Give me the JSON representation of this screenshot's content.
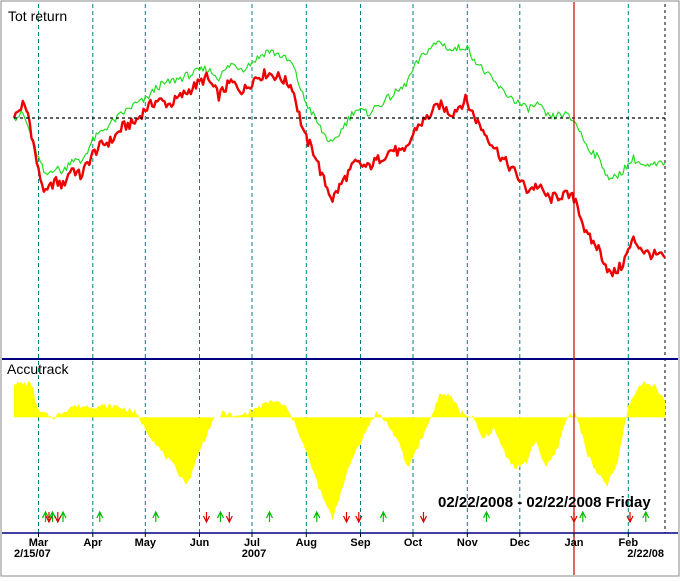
{
  "colors": {
    "series_a": "#ee0000",
    "series_b": "#22dd22",
    "accutrack_fill": "#ffff00",
    "grid_dashed": "#008080",
    "reference_line": "#000000",
    "panel_divider": "#000080",
    "cursor_line": "#cc0000",
    "signal_up": "#00bb00",
    "signal_down": "#dd0000"
  },
  "chart_data": [
    {
      "type": "line",
      "title": "Tot return",
      "x_range": [
        "2007-02-15",
        "2008-02-22"
      ],
      "reference_line_y": 0,
      "ylim": [
        -0.26,
        0.12
      ],
      "grid": "vertical dashed month lines",
      "series": [
        {
          "color": "#ee0000",
          "points": [
            [
              "2007-02-15",
              0.0
            ],
            [
              "2007-02-20",
              0.015
            ],
            [
              "2007-02-23",
              0.005
            ],
            [
              "2007-03-01",
              -0.06
            ],
            [
              "2007-03-05",
              -0.085
            ],
            [
              "2007-03-10",
              -0.07
            ],
            [
              "2007-03-15",
              -0.075
            ],
            [
              "2007-03-20",
              -0.055
            ],
            [
              "2007-03-25",
              -0.065
            ],
            [
              "2007-04-01",
              -0.04
            ],
            [
              "2007-04-06",
              -0.03
            ],
            [
              "2007-04-12",
              -0.025
            ],
            [
              "2007-04-18",
              -0.01
            ],
            [
              "2007-04-25",
              -0.005
            ],
            [
              "2007-05-01",
              0.01
            ],
            [
              "2007-05-08",
              0.02
            ],
            [
              "2007-05-15",
              0.015
            ],
            [
              "2007-05-22",
              0.025
            ],
            [
              "2007-05-29",
              0.035
            ],
            [
              "2007-06-05",
              0.045
            ],
            [
              "2007-06-12",
              0.025
            ],
            [
              "2007-06-19",
              0.04
            ],
            [
              "2007-06-26",
              0.03
            ],
            [
              "2007-07-03",
              0.045
            ],
            [
              "2007-07-10",
              0.05
            ],
            [
              "2007-07-17",
              0.045
            ],
            [
              "2007-07-24",
              0.035
            ],
            [
              "2007-07-31",
              -0.02
            ],
            [
              "2007-08-06",
              -0.04
            ],
            [
              "2007-08-10",
              -0.065
            ],
            [
              "2007-08-16",
              -0.09
            ],
            [
              "2007-08-22",
              -0.07
            ],
            [
              "2007-08-29",
              -0.05
            ],
            [
              "2007-09-05",
              -0.055
            ],
            [
              "2007-09-12",
              -0.045
            ],
            [
              "2007-09-19",
              -0.035
            ],
            [
              "2007-09-26",
              -0.04
            ],
            [
              "2007-10-03",
              -0.01
            ],
            [
              "2007-10-09",
              0.0
            ],
            [
              "2007-10-16",
              0.015
            ],
            [
              "2007-10-23",
              0.005
            ],
            [
              "2007-10-31",
              0.02
            ],
            [
              "2007-11-07",
              -0.005
            ],
            [
              "2007-11-14",
              -0.025
            ],
            [
              "2007-11-21",
              -0.045
            ],
            [
              "2007-11-28",
              -0.06
            ],
            [
              "2007-12-05",
              -0.08
            ],
            [
              "2007-12-11",
              -0.075
            ],
            [
              "2007-12-18",
              -0.09
            ],
            [
              "2007-12-26",
              -0.085
            ],
            [
              "2008-01-02",
              -0.09
            ],
            [
              "2008-01-08",
              -0.13
            ],
            [
              "2008-01-15",
              -0.145
            ],
            [
              "2008-01-22",
              -0.175
            ],
            [
              "2008-01-28",
              -0.165
            ],
            [
              "2008-02-04",
              -0.135
            ],
            [
              "2008-02-11",
              -0.15
            ],
            [
              "2008-02-22",
              -0.155
            ]
          ]
        },
        {
          "color": "#22dd22",
          "points": [
            [
              "2007-02-15",
              0.0
            ],
            [
              "2007-02-20",
              0.005
            ],
            [
              "2007-02-23",
              -0.01
            ],
            [
              "2007-03-01",
              -0.045
            ],
            [
              "2007-03-05",
              -0.065
            ],
            [
              "2007-03-10",
              -0.055
            ],
            [
              "2007-03-15",
              -0.06
            ],
            [
              "2007-03-20",
              -0.045
            ],
            [
              "2007-03-25",
              -0.05
            ],
            [
              "2007-04-01",
              -0.025
            ],
            [
              "2007-04-06",
              -0.015
            ],
            [
              "2007-04-12",
              -0.005
            ],
            [
              "2007-04-18",
              0.005
            ],
            [
              "2007-04-25",
              0.015
            ],
            [
              "2007-05-01",
              0.02
            ],
            [
              "2007-05-08",
              0.035
            ],
            [
              "2007-05-15",
              0.04
            ],
            [
              "2007-05-22",
              0.045
            ],
            [
              "2007-05-29",
              0.05
            ],
            [
              "2007-06-05",
              0.055
            ],
            [
              "2007-06-12",
              0.045
            ],
            [
              "2007-06-19",
              0.06
            ],
            [
              "2007-06-26",
              0.055
            ],
            [
              "2007-07-03",
              0.065
            ],
            [
              "2007-07-10",
              0.075
            ],
            [
              "2007-07-17",
              0.07
            ],
            [
              "2007-07-24",
              0.06
            ],
            [
              "2007-07-31",
              0.02
            ],
            [
              "2007-08-06",
              0.0
            ],
            [
              "2007-08-10",
              -0.015
            ],
            [
              "2007-08-16",
              -0.03
            ],
            [
              "2007-08-22",
              -0.01
            ],
            [
              "2007-08-29",
              0.01
            ],
            [
              "2007-09-05",
              0.005
            ],
            [
              "2007-09-12",
              0.015
            ],
            [
              "2007-09-19",
              0.025
            ],
            [
              "2007-09-26",
              0.035
            ],
            [
              "2007-10-03",
              0.06
            ],
            [
              "2007-10-09",
              0.075
            ],
            [
              "2007-10-16",
              0.085
            ],
            [
              "2007-10-23",
              0.075
            ],
            [
              "2007-10-31",
              0.08
            ],
            [
              "2007-11-07",
              0.06
            ],
            [
              "2007-11-14",
              0.045
            ],
            [
              "2007-11-21",
              0.03
            ],
            [
              "2007-11-28",
              0.02
            ],
            [
              "2007-12-05",
              0.01
            ],
            [
              "2007-12-11",
              0.015
            ],
            [
              "2007-12-18",
              0.0
            ],
            [
              "2007-12-26",
              0.005
            ],
            [
              "2008-01-02",
              -0.005
            ],
            [
              "2008-01-08",
              -0.03
            ],
            [
              "2008-01-15",
              -0.045
            ],
            [
              "2008-01-22",
              -0.07
            ],
            [
              "2008-01-28",
              -0.06
            ],
            [
              "2008-02-04",
              -0.045
            ],
            [
              "2008-02-11",
              -0.055
            ],
            [
              "2008-02-22",
              -0.05
            ]
          ]
        }
      ]
    },
    {
      "type": "area",
      "title": "Accutrack",
      "x_range": [
        "2007-02-15",
        "2008-02-22"
      ],
      "ylim": [
        -1.0,
        0.35
      ],
      "baseline": 0,
      "points": [
        [
          "2007-02-15",
          0.3
        ],
        [
          "2007-02-25",
          0.3
        ],
        [
          "2007-03-01",
          0.05
        ],
        [
          "2007-03-10",
          0.0
        ],
        [
          "2007-03-20",
          0.1
        ],
        [
          "2007-04-01",
          0.1
        ],
        [
          "2007-04-15",
          0.1
        ],
        [
          "2007-04-25",
          0.05
        ],
        [
          "2007-05-01",
          -0.1
        ],
        [
          "2007-05-10",
          -0.3
        ],
        [
          "2007-05-18",
          -0.45
        ],
        [
          "2007-05-25",
          -0.6
        ],
        [
          "2007-06-01",
          -0.3
        ],
        [
          "2007-06-08",
          -0.05
        ],
        [
          "2007-06-15",
          0.05
        ],
        [
          "2007-06-22",
          0.0
        ],
        [
          "2007-06-29",
          0.05
        ],
        [
          "2007-07-06",
          0.1
        ],
        [
          "2007-07-13",
          0.15
        ],
        [
          "2007-07-20",
          0.1
        ],
        [
          "2007-07-27",
          -0.1
        ],
        [
          "2007-08-03",
          -0.4
        ],
        [
          "2007-08-10",
          -0.7
        ],
        [
          "2007-08-16",
          -0.9
        ],
        [
          "2007-08-22",
          -0.6
        ],
        [
          "2007-08-29",
          -0.3
        ],
        [
          "2007-09-05",
          -0.1
        ],
        [
          "2007-09-10",
          0.05
        ],
        [
          "2007-09-16",
          -0.05
        ],
        [
          "2007-09-22",
          -0.2
        ],
        [
          "2007-09-28",
          -0.45
        ],
        [
          "2007-10-04",
          -0.25
        ],
        [
          "2007-10-10",
          -0.05
        ],
        [
          "2007-10-16",
          0.2
        ],
        [
          "2007-10-22",
          0.2
        ],
        [
          "2007-10-28",
          0.05
        ],
        [
          "2007-11-04",
          0.0
        ],
        [
          "2007-11-10",
          -0.2
        ],
        [
          "2007-11-16",
          -0.1
        ],
        [
          "2007-11-22",
          -0.3
        ],
        [
          "2007-11-28",
          -0.45
        ],
        [
          "2007-12-05",
          -0.4
        ],
        [
          "2007-12-10",
          -0.2
        ],
        [
          "2007-12-16",
          -0.45
        ],
        [
          "2007-12-22",
          -0.3
        ],
        [
          "2007-12-28",
          0.0
        ],
        [
          "2008-01-02",
          0.05
        ],
        [
          "2008-01-08",
          -0.3
        ],
        [
          "2008-01-14",
          -0.5
        ],
        [
          "2008-01-20",
          -0.6
        ],
        [
          "2008-01-26",
          -0.4
        ],
        [
          "2008-02-01",
          0.1
        ],
        [
          "2008-02-08",
          0.3
        ],
        [
          "2008-02-15",
          0.3
        ],
        [
          "2008-02-22",
          0.15
        ]
      ]
    }
  ],
  "panels": {
    "top_label": "Tot return",
    "bottom_label": "Accutrack",
    "date_range_text": "02/22/2008 - 02/22/2008 Friday"
  },
  "x_axis": {
    "months": [
      {
        "label": "Mar",
        "date": "2007-03-01"
      },
      {
        "label": "Apr",
        "date": "2007-04-01"
      },
      {
        "label": "May",
        "date": "2007-05-01"
      },
      {
        "label": "Jun",
        "date": "2007-06-01"
      },
      {
        "label": "Jul",
        "date": "2007-07-01"
      },
      {
        "label": "Aug",
        "date": "2007-08-01"
      },
      {
        "label": "Sep",
        "date": "2007-09-01"
      },
      {
        "label": "Oct",
        "date": "2007-10-01"
      },
      {
        "label": "Nov",
        "date": "2007-11-01"
      },
      {
        "label": "Dec",
        "date": "2007-12-01"
      },
      {
        "label": "Jan",
        "date": "2008-01-01"
      },
      {
        "label": "Feb",
        "date": "2008-02-01"
      }
    ],
    "start_label": "2/15/07",
    "year_label": "2007",
    "end_label": "2/22/08",
    "cursor_date": "2008-01-01"
  },
  "signals": {
    "up": [
      "2007-03-05",
      "2007-03-09",
      "2007-03-15",
      "2007-04-05",
      "2007-05-07",
      "2007-06-13",
      "2007-07-11",
      "2007-08-07",
      "2007-09-14",
      "2007-11-12",
      "2008-01-06",
      "2008-02-11"
    ],
    "down": [
      "2007-03-07",
      "2007-03-12",
      "2007-06-05",
      "2007-06-18",
      "2007-08-24",
      "2007-08-31",
      "2007-10-07",
      "2008-01-01",
      "2008-02-02"
    ]
  }
}
